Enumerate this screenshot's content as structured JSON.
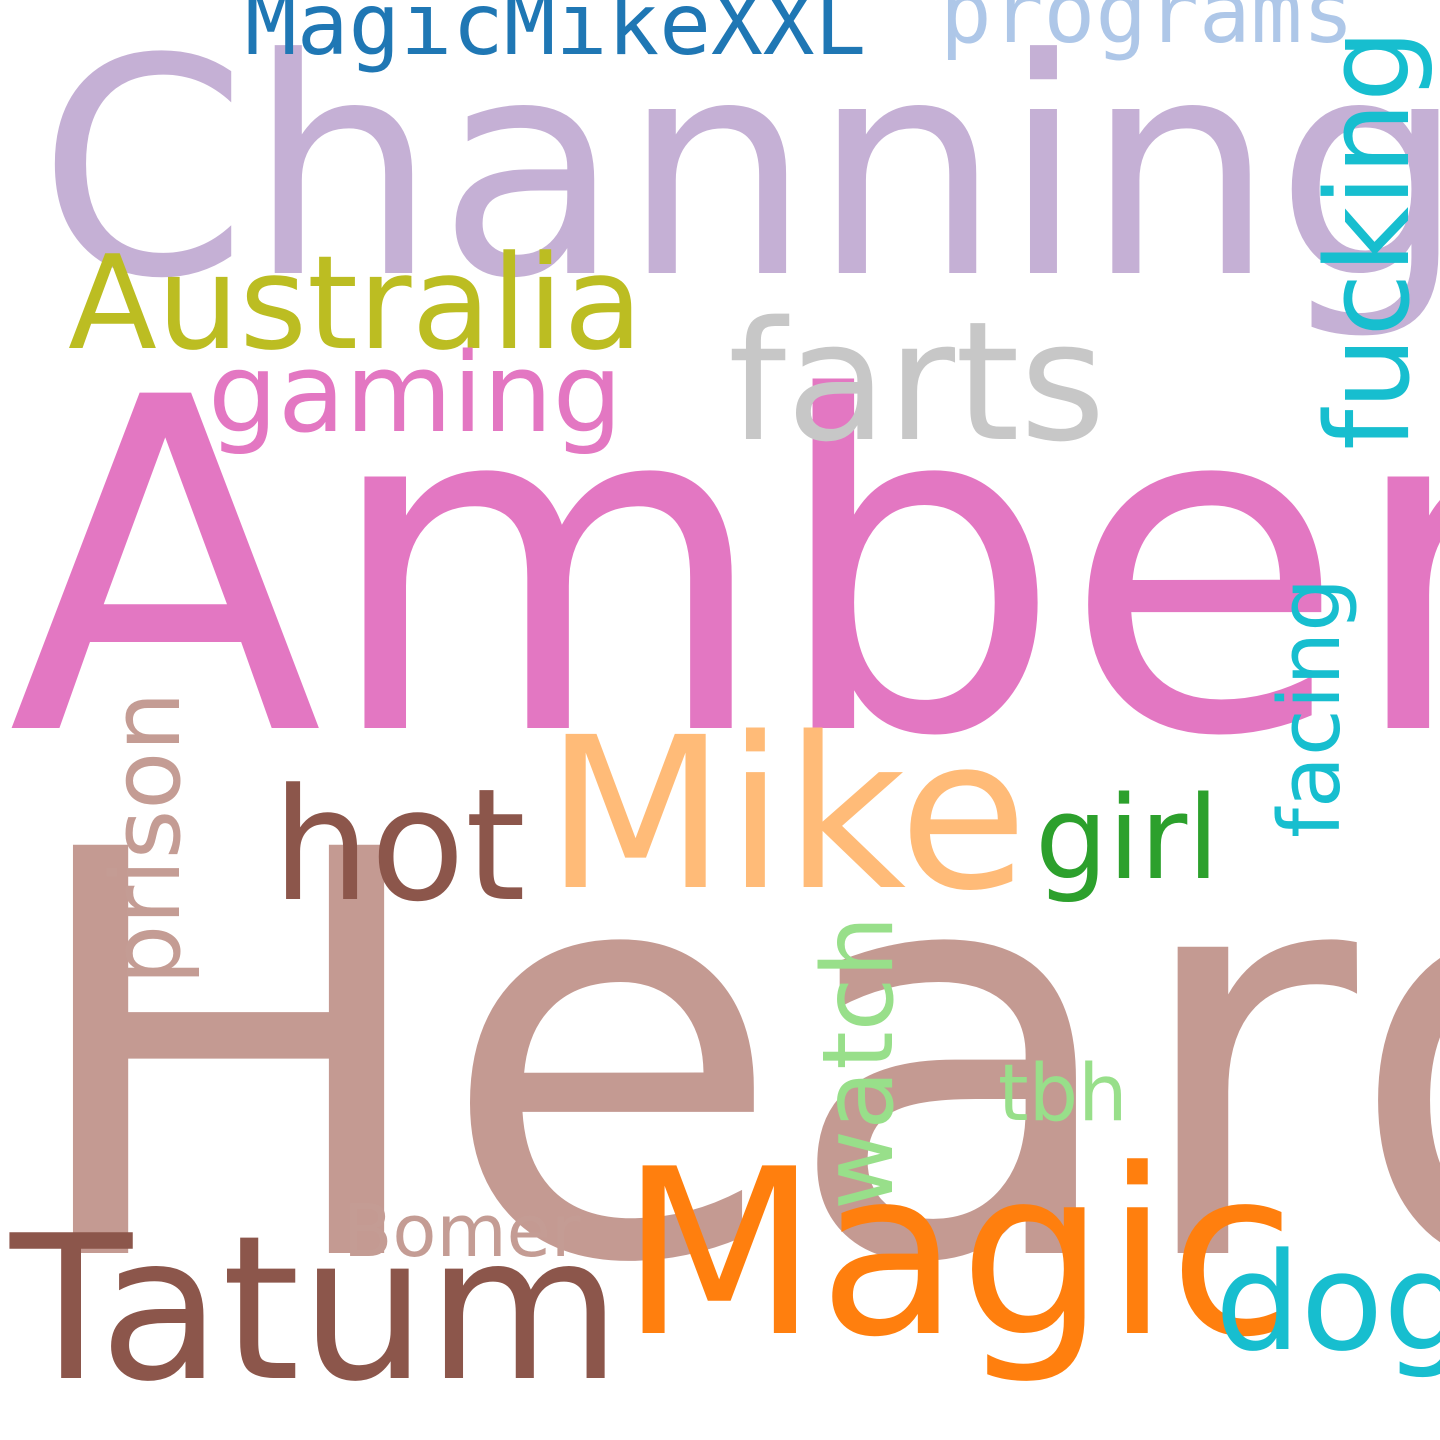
{
  "words": {
    "heard": {
      "text": "Heard",
      "color": "#c49a92"
    },
    "amber": {
      "text": "Amber",
      "color": "#e377c2"
    },
    "channing": {
      "text": "Channing",
      "color": "#c5b0d5"
    },
    "magic": {
      "text": "Magic",
      "color": "#ff7f0e"
    },
    "mike": {
      "text": "Mike",
      "color": "#ffbb78"
    },
    "tatum": {
      "text": "Tatum",
      "color": "#8c564b"
    },
    "farts": {
      "text": "farts",
      "color": "#c7c7c7"
    },
    "hot": {
      "text": "hot",
      "color": "#8c564b"
    },
    "australia": {
      "text": "Australia",
      "color": "#bcbd22"
    },
    "dog": {
      "text": "dog",
      "color": "#17becf"
    },
    "gaming": {
      "text": "gaming",
      "color": "#e377c2"
    },
    "girl": {
      "text": "girl",
      "color": "#2ca02c"
    },
    "magicmike": {
      "text": "MagicMikeXXL",
      "color": "#1f77b4"
    },
    "programs": {
      "text": "programs",
      "color": "#aec7e8"
    },
    "tbh": {
      "text": "tbh",
      "color": "#98df8a"
    },
    "bomer": {
      "text": "Bomer",
      "color": "#c49c94"
    },
    "fucking": {
      "text": "fucking",
      "color": "#17becf"
    },
    "prison": {
      "text": "prison",
      "color": "#c49c94"
    },
    "watch": {
      "text": "watch",
      "color": "#98df8a"
    },
    "facing": {
      "text": "facing",
      "color": "#17becf"
    }
  }
}
